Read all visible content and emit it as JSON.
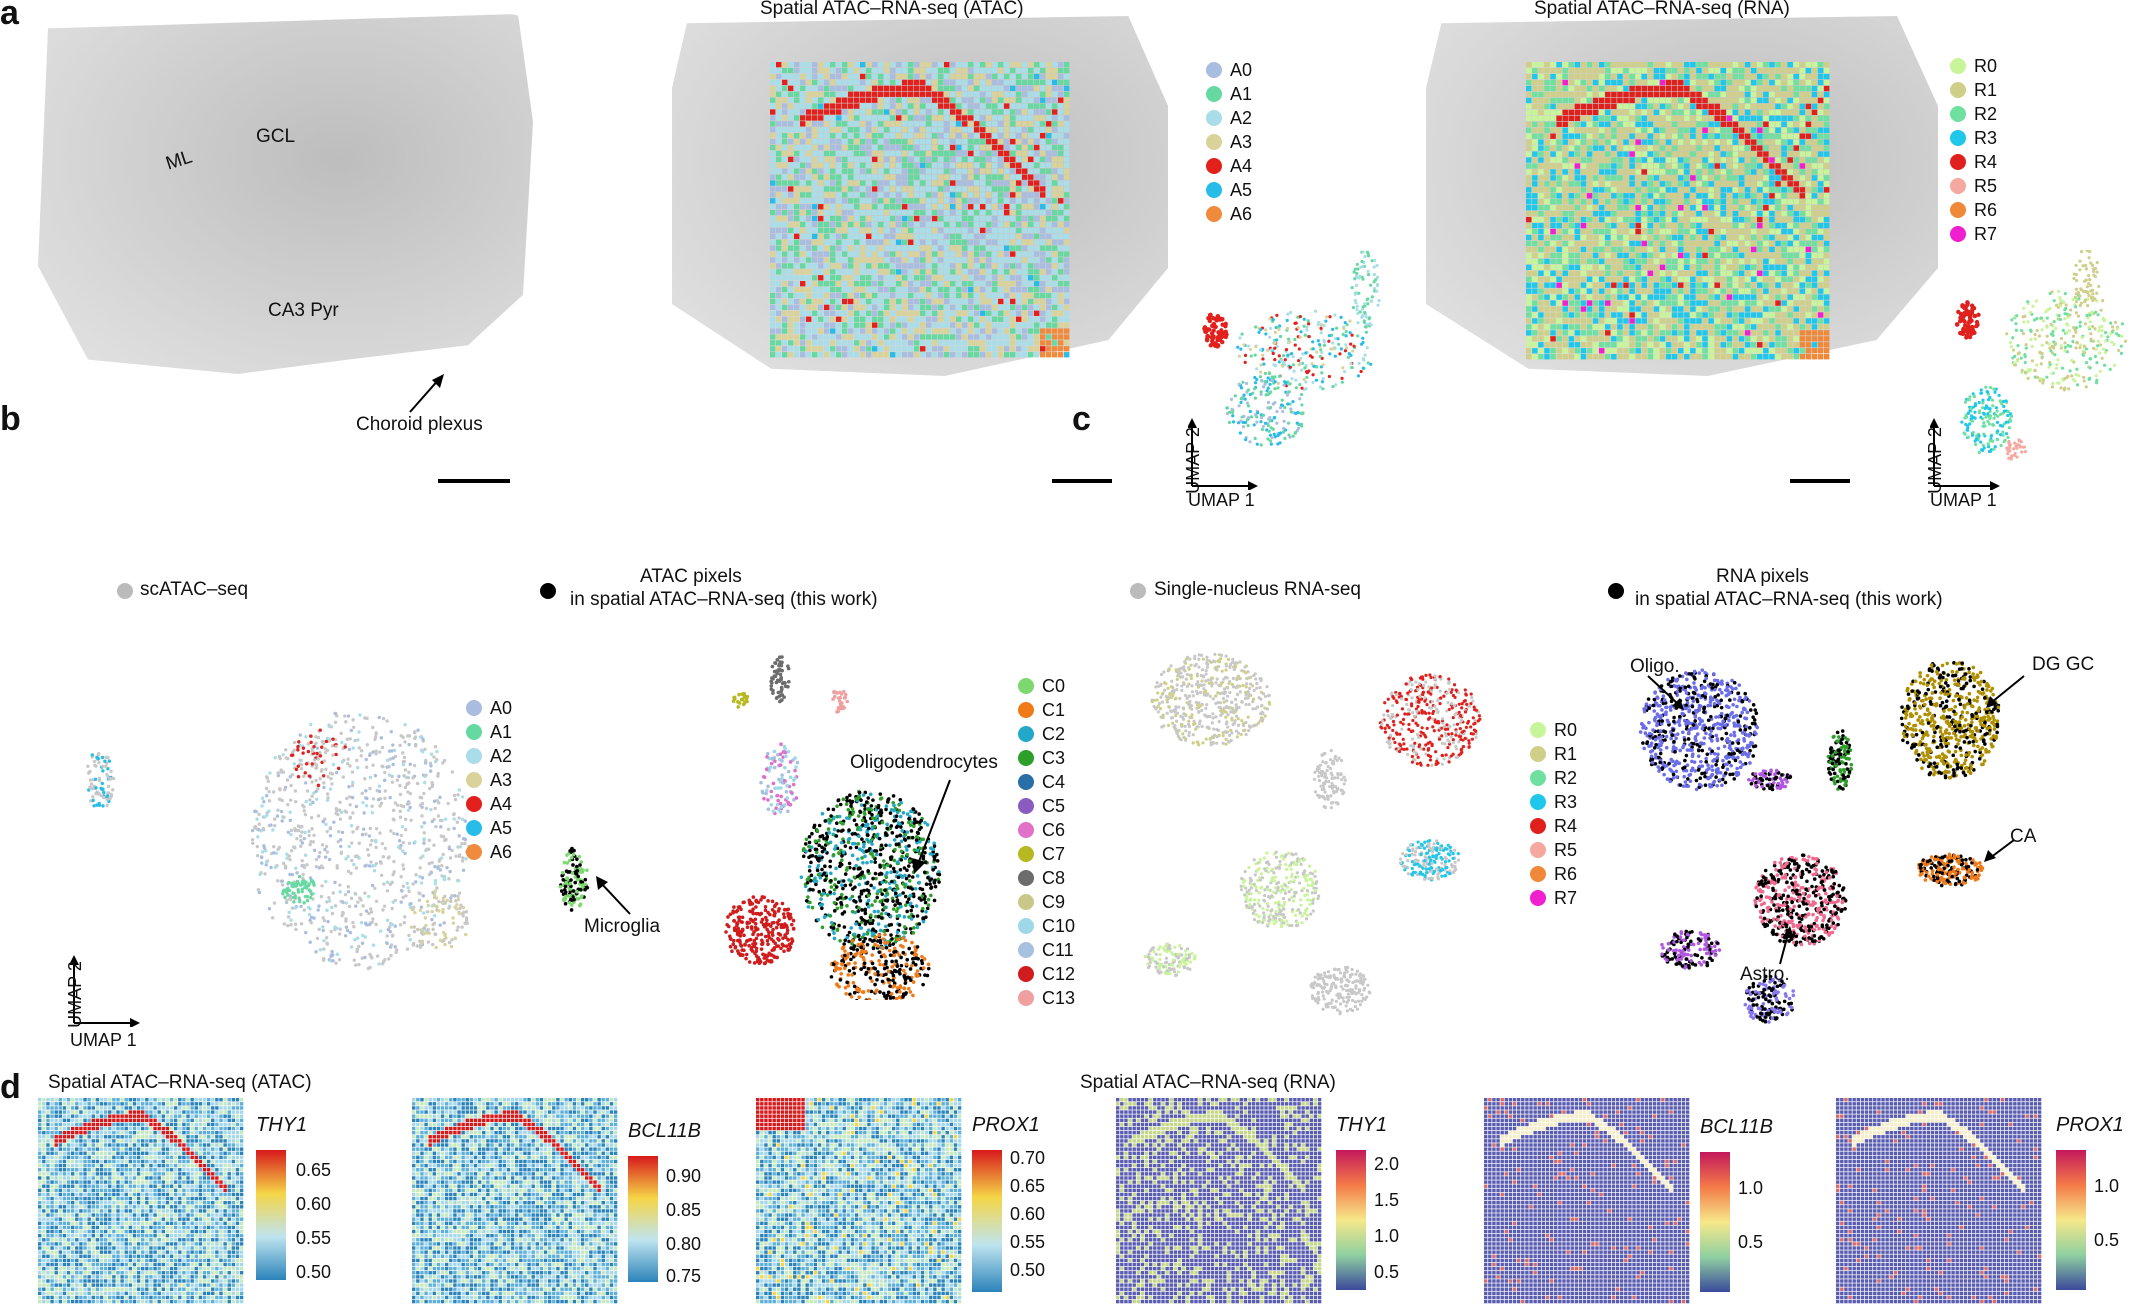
{
  "panel_labels": {
    "a": "a",
    "b": "b",
    "c": "c",
    "d": "d"
  },
  "panel_a": {
    "tissue_annotations": {
      "ml": "ML",
      "gcl": "GCL",
      "ca3": "CA3 Pyr",
      "choroid": "Choroid plexus"
    },
    "atac_title": "Spatial ATAC–RNA-seq (ATAC)",
    "rna_title": "Spatial ATAC–RNA-seq (RNA)",
    "atac_legend": [
      {
        "label": "A0",
        "color": "#a9bde0"
      },
      {
        "label": "A1",
        "color": "#66d9a0"
      },
      {
        "label": "A2",
        "color": "#a9dde8"
      },
      {
        "label": "A3",
        "color": "#d9d39a"
      },
      {
        "label": "A4",
        "color": "#e3201b"
      },
      {
        "label": "A5",
        "color": "#27bde8"
      },
      {
        "label": "A6",
        "color": "#f08a3c"
      }
    ],
    "rna_legend": [
      {
        "label": "R0",
        "color": "#c9f59a"
      },
      {
        "label": "R1",
        "color": "#cfcf8a"
      },
      {
        "label": "R2",
        "color": "#6fe0a0"
      },
      {
        "label": "R3",
        "color": "#1fc8ea"
      },
      {
        "label": "R4",
        "color": "#e0201c"
      },
      {
        "label": "R5",
        "color": "#f5a8a0"
      },
      {
        "label": "R6",
        "color": "#f0883a"
      },
      {
        "label": "R7",
        "color": "#f01fd0"
      }
    ],
    "umap_x": "UMAP 1",
    "umap_y": "UMAP 2"
  },
  "panel_b": {
    "ref_legend": "scATAC–seq",
    "px_title_1": "ATAC pixels",
    "px_title_2": "in spatial ATAC–RNA-seq (this work)",
    "a_legend": [
      {
        "label": "A0",
        "color": "#a9bde0"
      },
      {
        "label": "A1",
        "color": "#66d9a0"
      },
      {
        "label": "A2",
        "color": "#a9dde8"
      },
      {
        "label": "A3",
        "color": "#d9d39a"
      },
      {
        "label": "A4",
        "color": "#e3201b"
      },
      {
        "label": "A5",
        "color": "#27bde8"
      },
      {
        "label": "A6",
        "color": "#f08a3c"
      }
    ],
    "c_legend": [
      {
        "label": "C0",
        "color": "#7dd870"
      },
      {
        "label": "C1",
        "color": "#f07a18"
      },
      {
        "label": "C2",
        "color": "#22a8c8"
      },
      {
        "label": "C3",
        "color": "#2ea02a"
      },
      {
        "label": "C4",
        "color": "#2a6ea8"
      },
      {
        "label": "C5",
        "color": "#8a5cc0"
      },
      {
        "label": "C6",
        "color": "#e070c8"
      },
      {
        "label": "C7",
        "color": "#b8b820"
      },
      {
        "label": "C8",
        "color": "#6c6c6c"
      },
      {
        "label": "C9",
        "color": "#c8c88a"
      },
      {
        "label": "C10",
        "color": "#9ed8e8"
      },
      {
        "label": "C11",
        "color": "#a8c0e0"
      },
      {
        "label": "C12",
        "color": "#d01c1c"
      },
      {
        "label": "C13",
        "color": "#f0a0a0"
      }
    ],
    "microglia": "Microglia",
    "oligo": "Oligodendrocytes",
    "umap_x": "UMAP 1",
    "umap_y": "UMAP 2"
  },
  "panel_c": {
    "ref_legend": "Single-nucleus RNA-seq",
    "px_title_1": "RNA pixels",
    "px_title_2": "in spatial ATAC–RNA-seq (this work)",
    "r_legend": [
      {
        "label": "R0",
        "color": "#c9f59a"
      },
      {
        "label": "R1",
        "color": "#cfcf8a"
      },
      {
        "label": "R2",
        "color": "#6fe0a0"
      },
      {
        "label": "R3",
        "color": "#1fc8ea"
      },
      {
        "label": "R4",
        "color": "#e0201c"
      },
      {
        "label": "R5",
        "color": "#f5a8a0"
      },
      {
        "label": "R6",
        "color": "#f0883a"
      },
      {
        "label": "R7",
        "color": "#f01fd0"
      }
    ],
    "oligo": "Oligo.",
    "dggc": "DG GC",
    "ca": "CA",
    "astro": "Astro."
  },
  "panel_d": {
    "atac_title": "Spatial ATAC–RNA-seq (ATAC)",
    "rna_title": "Spatial ATAC–RNA-seq (RNA)",
    "maps": [
      {
        "gene": "THY1",
        "ticks": [
          "0.65",
          "0.60",
          "0.55",
          "0.50"
        ]
      },
      {
        "gene": "BCL11B",
        "ticks": [
          "0.90",
          "0.85",
          "0.80",
          "0.75"
        ]
      },
      {
        "gene": "PROX1",
        "ticks": [
          "0.70",
          "0.65",
          "0.60",
          "0.55",
          "0.50"
        ]
      },
      {
        "gene": "THY1",
        "ticks": [
          "2.0",
          "1.5",
          "1.0",
          "0.5"
        ]
      },
      {
        "gene": "BCL11B",
        "ticks": [
          "1.0",
          "0.5"
        ]
      },
      {
        "gene": "PROX1",
        "ticks": [
          "1.0",
          "0.5"
        ]
      }
    ]
  },
  "colors": {
    "jet_top": "#d7191c",
    "jet_bottom": "#2b83ba",
    "viridis_top": "#c2185b",
    "viridis_bottom": "#3b4a9c"
  }
}
